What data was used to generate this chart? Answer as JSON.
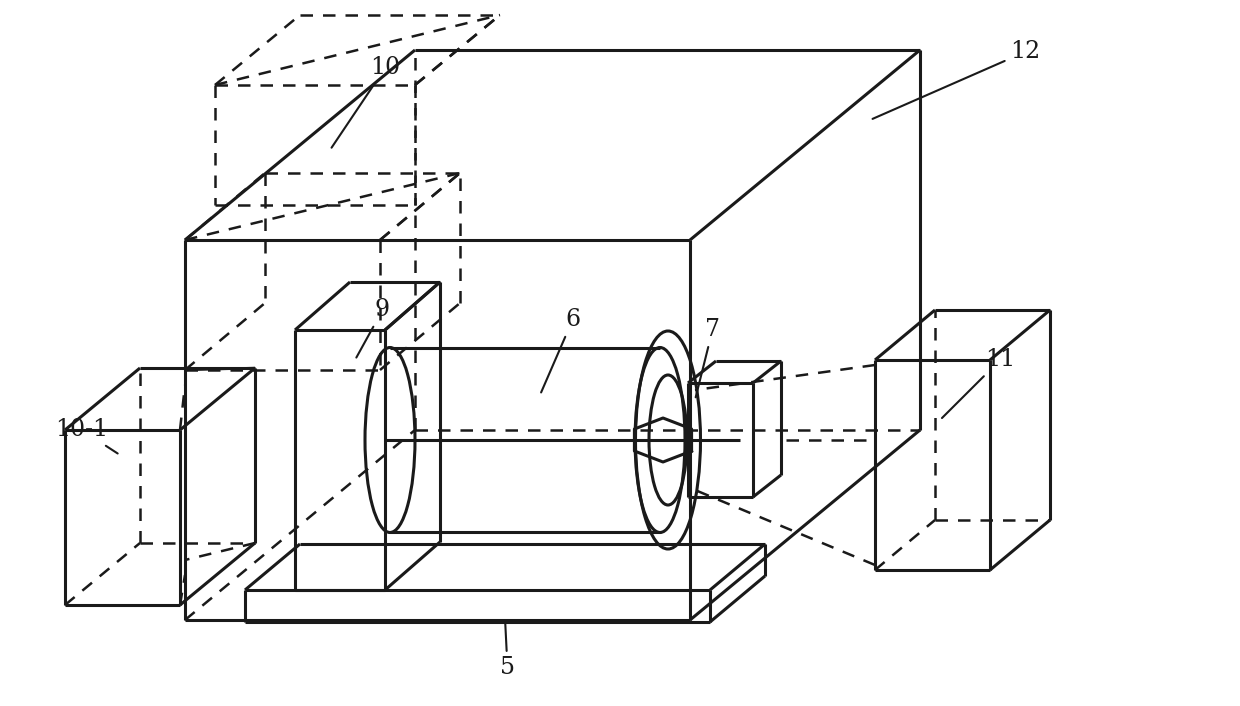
{
  "bg_color": "#ffffff",
  "lc": "#1a1a1a",
  "lw": 2.2,
  "dlw": 1.8,
  "label_fontsize": 17,
  "figsize": [
    12.4,
    7.06
  ],
  "dpi": 100
}
